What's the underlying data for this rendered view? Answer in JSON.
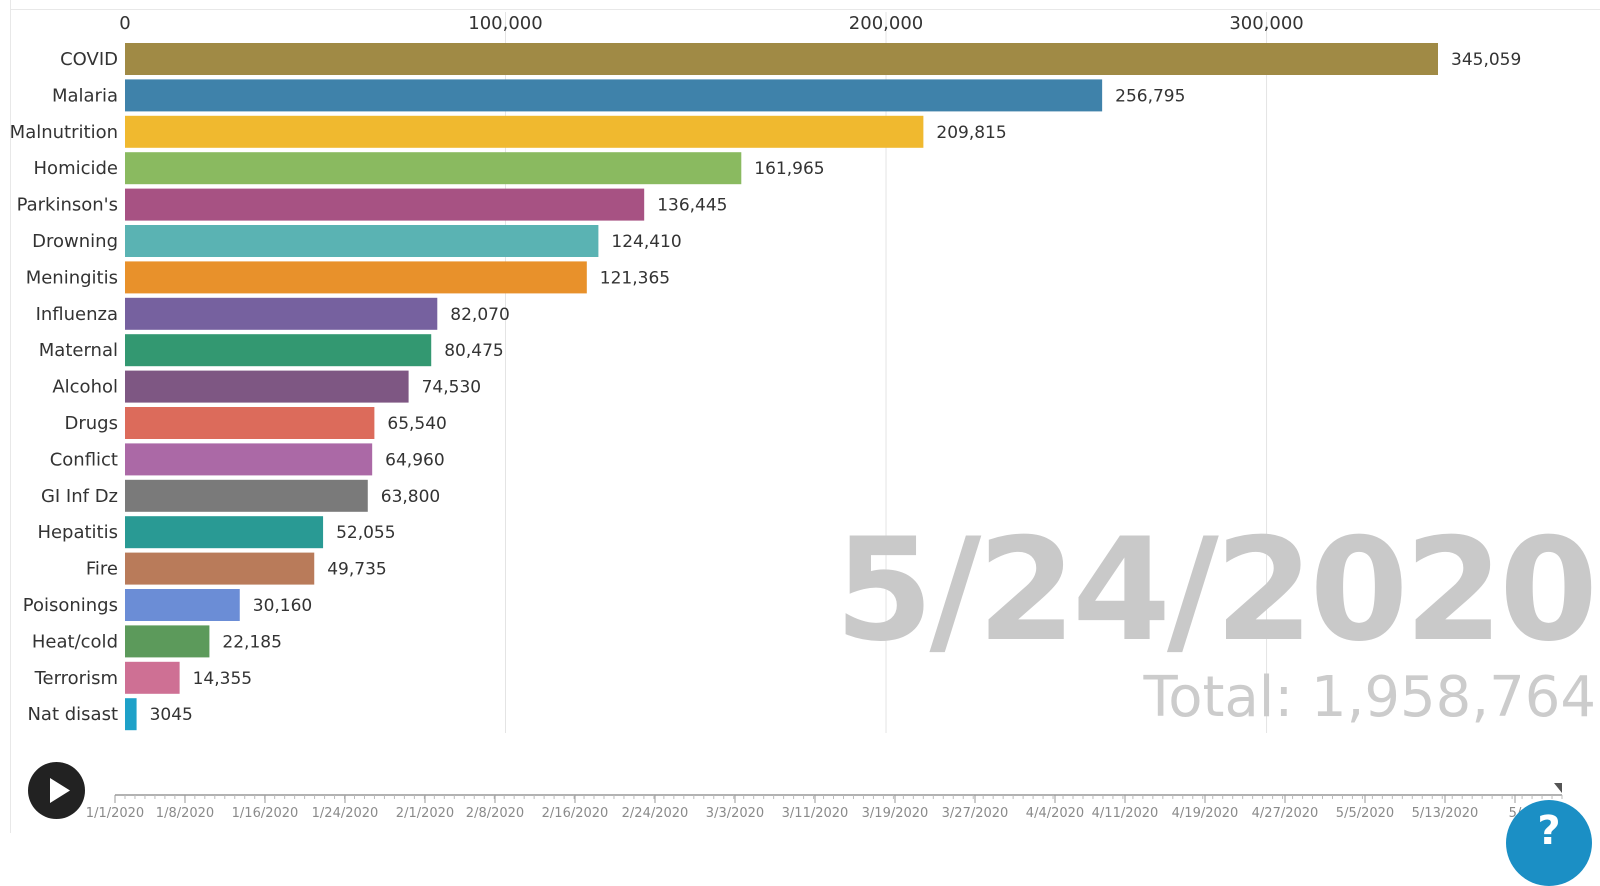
{
  "chart_data": {
    "type": "bar",
    "orientation": "horizontal",
    "categories": [
      "COVID",
      "Malaria",
      "Malnutrition",
      "Homicide",
      "Parkinson's",
      "Drowning",
      "Meningitis",
      "Influenza",
      "Maternal",
      "Alcohol",
      "Drugs",
      "Conflict",
      "GI Inf Dz",
      "Hepatitis",
      "Fire",
      "Poisonings",
      "Heat/cold",
      "Terrorism",
      "Nat disast"
    ],
    "values": [
      345059,
      256795,
      209815,
      161965,
      136445,
      124410,
      121365,
      82070,
      80475,
      74530,
      65540,
      64960,
      63800,
      52055,
      49735,
      30160,
      22185,
      14355,
      3045
    ],
    "value_labels": [
      "345,059",
      "256,795",
      "209,815",
      "161,965",
      "136,445",
      "124,410",
      "121,365",
      "82,070",
      "80,475",
      "74,530",
      "65,540",
      "64,960",
      "63,800",
      "52,055",
      "49,735",
      "30,160",
      "22,185",
      "14,355",
      "3045"
    ],
    "colors": [
      "#a08a45",
      "#3f82aa",
      "#f0b92f",
      "#8aba60",
      "#a75283",
      "#5ab3b3",
      "#e8912b",
      "#76619f",
      "#339871",
      "#7e5783",
      "#dc6b5b",
      "#ab69a6",
      "#7a7a7a",
      "#299a94",
      "#b97b5a",
      "#6b8dd6",
      "#5c9a5b",
      "#ce7094",
      "#1ea1c8"
    ],
    "x_ticks": [
      0,
      100000,
      200000,
      300000
    ],
    "x_tick_labels": [
      "0",
      "100,000",
      "200,000",
      "300,000"
    ],
    "xlim": [
      0,
      372000
    ],
    "grid": true
  },
  "overlay": {
    "date": "5/24/2020",
    "total": "Total: 1,958,764"
  },
  "timeline": {
    "labels": [
      "1/1/2020",
      "1/8/2020",
      "1/16/2020",
      "1/24/2020",
      "2/1/2020",
      "2/8/2020",
      "2/16/2020",
      "2/24/2020",
      "3/3/2020",
      "3/11/2020",
      "3/19/2020",
      "3/27/2020",
      "4/4/2020",
      "4/11/2020",
      "4/19/2020",
      "4/27/2020",
      "5/5/2020",
      "5/13/2020",
      "5/"
    ],
    "play_icon": "play-icon",
    "help_icon": "question-icon"
  },
  "colors": {
    "axis": "#999999",
    "grid": "#e4e4e4",
    "text": "#333333",
    "overlay": "#c9c9c9"
  }
}
